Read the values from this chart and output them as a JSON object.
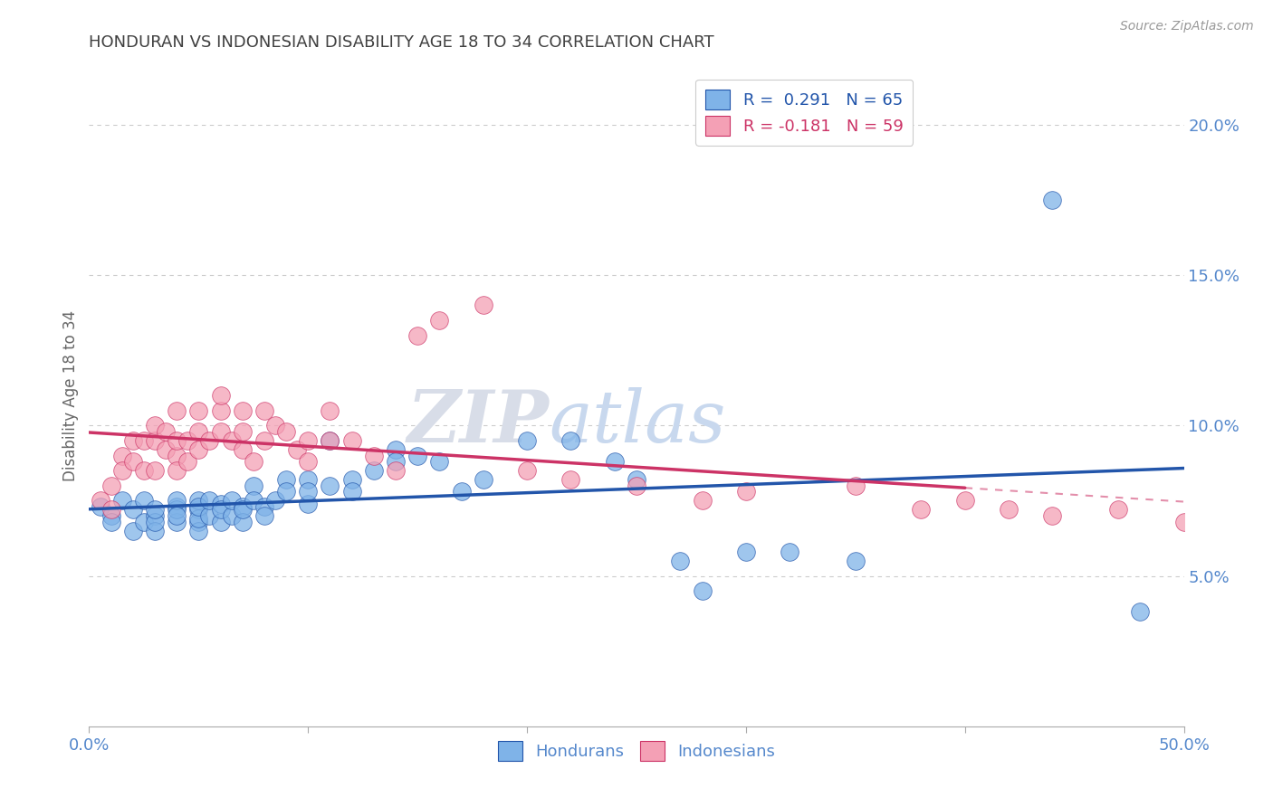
{
  "title": "HONDURAN VS INDONESIAN DISABILITY AGE 18 TO 34 CORRELATION CHART",
  "source": "Source: ZipAtlas.com",
  "ylabel": "Disability Age 18 to 34",
  "xlim": [
    0.0,
    0.5
  ],
  "ylim": [
    0.0,
    0.22
  ],
  "yticks": [
    0.05,
    0.1,
    0.15,
    0.2
  ],
  "ytick_labels": [
    "5.0%",
    "10.0%",
    "15.0%",
    "20.0%"
  ],
  "xtick_positions": [
    0.0,
    0.1,
    0.2,
    0.3,
    0.4,
    0.5
  ],
  "legend1_label": "R =  0.291   N = 65",
  "legend2_label": "R = -0.181   N = 59",
  "hondurans_label": "Hondurans",
  "indonesians_label": "Indonesians",
  "blue_scatter_color": "#7fb3e8",
  "pink_scatter_color": "#f4a0b5",
  "blue_line_color": "#2255aa",
  "pink_line_color": "#cc3366",
  "background_color": "#ffffff",
  "grid_color": "#cccccc",
  "title_color": "#404040",
  "axis_label_color": "#5588cc",
  "watermark_color": "#dde5f0",
  "hondurans_x": [
    0.005,
    0.01,
    0.01,
    0.015,
    0.02,
    0.02,
    0.025,
    0.025,
    0.03,
    0.03,
    0.03,
    0.03,
    0.04,
    0.04,
    0.04,
    0.04,
    0.04,
    0.05,
    0.05,
    0.05,
    0.05,
    0.05,
    0.05,
    0.055,
    0.055,
    0.06,
    0.06,
    0.06,
    0.065,
    0.065,
    0.07,
    0.07,
    0.07,
    0.075,
    0.075,
    0.08,
    0.08,
    0.085,
    0.09,
    0.09,
    0.1,
    0.1,
    0.1,
    0.11,
    0.11,
    0.12,
    0.12,
    0.13,
    0.14,
    0.14,
    0.15,
    0.16,
    0.17,
    0.18,
    0.2,
    0.22,
    0.24,
    0.25,
    0.27,
    0.28,
    0.3,
    0.32,
    0.35,
    0.44,
    0.48
  ],
  "hondurans_y": [
    0.073,
    0.07,
    0.068,
    0.075,
    0.072,
    0.065,
    0.075,
    0.068,
    0.07,
    0.065,
    0.068,
    0.072,
    0.073,
    0.068,
    0.072,
    0.075,
    0.07,
    0.072,
    0.068,
    0.065,
    0.075,
    0.069,
    0.073,
    0.07,
    0.075,
    0.074,
    0.068,
    0.072,
    0.07,
    0.075,
    0.073,
    0.068,
    0.072,
    0.08,
    0.075,
    0.073,
    0.07,
    0.075,
    0.082,
    0.078,
    0.082,
    0.074,
    0.078,
    0.08,
    0.095,
    0.082,
    0.078,
    0.085,
    0.092,
    0.088,
    0.09,
    0.088,
    0.078,
    0.082,
    0.095,
    0.095,
    0.088,
    0.082,
    0.055,
    0.045,
    0.058,
    0.058,
    0.055,
    0.175,
    0.038
  ],
  "indonesians_x": [
    0.005,
    0.01,
    0.01,
    0.015,
    0.015,
    0.02,
    0.02,
    0.025,
    0.025,
    0.03,
    0.03,
    0.03,
    0.035,
    0.035,
    0.04,
    0.04,
    0.04,
    0.04,
    0.045,
    0.045,
    0.05,
    0.05,
    0.05,
    0.055,
    0.06,
    0.06,
    0.06,
    0.065,
    0.07,
    0.07,
    0.07,
    0.075,
    0.08,
    0.08,
    0.085,
    0.09,
    0.095,
    0.1,
    0.1,
    0.11,
    0.11,
    0.12,
    0.13,
    0.14,
    0.15,
    0.16,
    0.18,
    0.2,
    0.22,
    0.25,
    0.28,
    0.3,
    0.35,
    0.38,
    0.4,
    0.42,
    0.44,
    0.47,
    0.5
  ],
  "indonesians_y": [
    0.075,
    0.08,
    0.072,
    0.09,
    0.085,
    0.088,
    0.095,
    0.085,
    0.095,
    0.085,
    0.095,
    0.1,
    0.092,
    0.098,
    0.09,
    0.085,
    0.095,
    0.105,
    0.088,
    0.095,
    0.092,
    0.098,
    0.105,
    0.095,
    0.098,
    0.105,
    0.11,
    0.095,
    0.092,
    0.098,
    0.105,
    0.088,
    0.095,
    0.105,
    0.1,
    0.098,
    0.092,
    0.095,
    0.088,
    0.095,
    0.105,
    0.095,
    0.09,
    0.085,
    0.13,
    0.135,
    0.14,
    0.085,
    0.082,
    0.08,
    0.075,
    0.078,
    0.08,
    0.072,
    0.075,
    0.072,
    0.07,
    0.072,
    0.068
  ]
}
